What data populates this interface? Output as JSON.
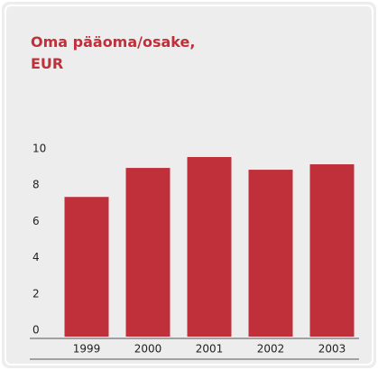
{
  "chart_data": {
    "type": "bar",
    "title": [
      "Oma pääoma/osake,",
      "EUR"
    ],
    "categories": [
      "1999",
      "2000",
      "2001",
      "2002",
      "2003"
    ],
    "values": [
      7.7,
      9.3,
      9.9,
      9.2,
      9.5
    ],
    "color": "#c0303a",
    "ylim": [
      0,
      10
    ],
    "yticks": [
      0,
      2,
      4,
      6,
      8,
      10
    ],
    "grid": false
  }
}
